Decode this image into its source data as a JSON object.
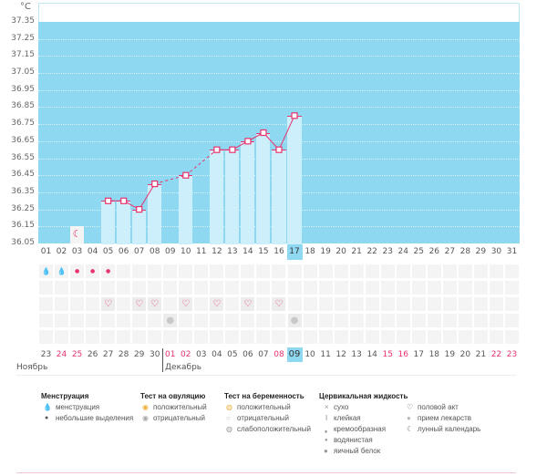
{
  "chart_data": {
    "type": "bar",
    "ylabel": "°C",
    "ylim": [
      36.05,
      37.35
    ],
    "yticks": [
      "37.35",
      "37.25",
      "37.15",
      "37.05",
      "36.95",
      "36.85",
      "36.75",
      "36.65",
      "36.55",
      "36.45",
      "36.35",
      "36.25",
      "36.15",
      "36.05"
    ],
    "categories": [
      "01",
      "02",
      "03",
      "04",
      "05",
      "06",
      "07",
      "08",
      "09",
      "10",
      "11",
      "12",
      "13",
      "14",
      "15",
      "16",
      "17",
      "18",
      "19",
      "20",
      "21",
      "22",
      "23",
      "24",
      "25",
      "26",
      "27",
      "28",
      "29",
      "30",
      "31"
    ],
    "values": [
      null,
      null,
      null,
      null,
      36.3,
      36.3,
      36.25,
      36.4,
      null,
      36.45,
      null,
      36.6,
      36.6,
      36.65,
      36.7,
      36.6,
      36.8,
      null,
      null,
      null,
      null,
      null,
      null,
      null,
      null,
      null,
      null,
      null,
      null,
      null,
      null
    ],
    "today": "17",
    "moon_day": "03",
    "colors": {
      "background": "#8fd8f2",
      "bar": "#cdeefb",
      "line": "#e8336d"
    }
  },
  "events": {
    "menstruation": {
      "01": "heavy",
      "02": "heavy",
      "03": "light",
      "04": "light",
      "05": "light"
    },
    "intercourse": [
      "05",
      "07",
      "08",
      "10",
      "12",
      "14",
      "16"
    ],
    "medication": [
      "09",
      "17"
    ]
  },
  "dates": [
    {
      "d": "23",
      "r": false
    },
    {
      "d": "24",
      "r": true
    },
    {
      "d": "25",
      "r": true
    },
    {
      "d": "26",
      "r": false
    },
    {
      "d": "27",
      "r": false
    },
    {
      "d": "28",
      "r": false
    },
    {
      "d": "29",
      "r": false
    },
    {
      "d": "30",
      "r": false
    },
    {
      "d": "01",
      "r": true
    },
    {
      "d": "02",
      "r": true
    },
    {
      "d": "03",
      "r": false
    },
    {
      "d": "04",
      "r": false
    },
    {
      "d": "05",
      "r": false
    },
    {
      "d": "06",
      "r": false
    },
    {
      "d": "07",
      "r": false
    },
    {
      "d": "08",
      "r": true
    },
    {
      "d": "09",
      "r": false
    },
    {
      "d": "10",
      "r": false
    },
    {
      "d": "11",
      "r": false
    },
    {
      "d": "12",
      "r": false
    },
    {
      "d": "13",
      "r": false
    },
    {
      "d": "14",
      "r": false
    },
    {
      "d": "15",
      "r": true
    },
    {
      "d": "16",
      "r": true
    },
    {
      "d": "17",
      "r": false
    },
    {
      "d": "18",
      "r": false
    },
    {
      "d": "19",
      "r": false
    },
    {
      "d": "20",
      "r": false
    },
    {
      "d": "21",
      "r": false
    },
    {
      "d": "22",
      "r": true
    },
    {
      "d": "23",
      "r": true
    }
  ],
  "months": {
    "nov": "Ноябрь",
    "dec": "Декабрь"
  },
  "legend": {
    "menstruation": {
      "title": "Менструация",
      "items": [
        "менструация",
        "небольшие выделения"
      ]
    },
    "ovulation": {
      "title": "Тест на овуляцию",
      "items": [
        "положительный",
        "отрицательный"
      ]
    },
    "pregnancy": {
      "title": "Тест на беременность",
      "items": [
        "положительный",
        "отрицательный",
        "слабоположительный"
      ]
    },
    "cervical": {
      "title": "Цервикальная жидкость",
      "items": [
        "сухо",
        "клейкая",
        "кремообразная",
        "водянистая",
        "яичный белок"
      ]
    },
    "other": {
      "items": [
        "половой акт",
        "прием лекарств",
        "лунный календарь"
      ]
    }
  }
}
